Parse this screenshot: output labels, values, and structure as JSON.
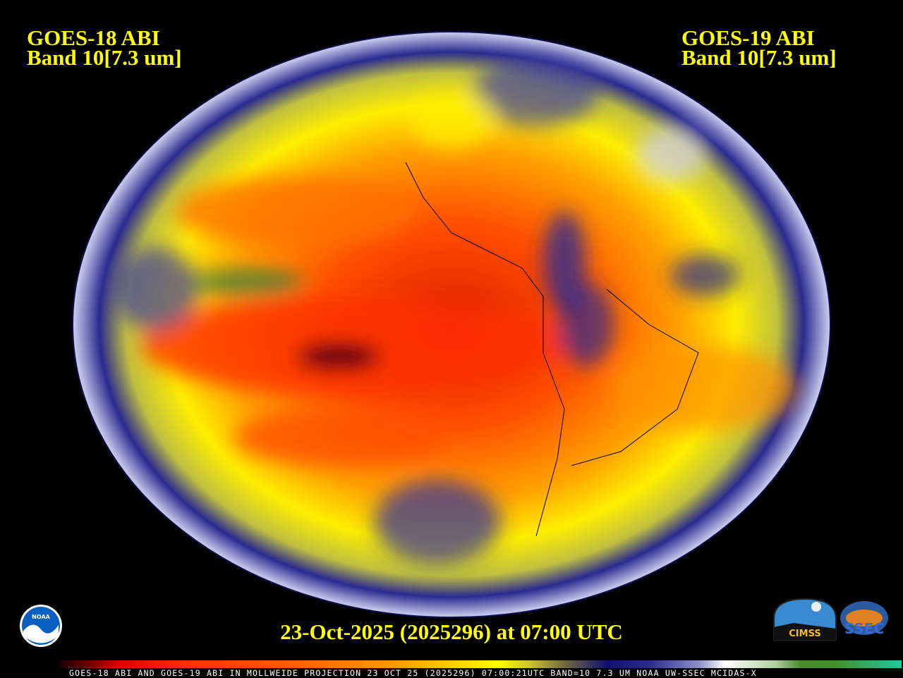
{
  "left_label": {
    "line1": "GOES-18 ABI",
    "line2": "Band 10[7.3 um]"
  },
  "right_label": {
    "line1": "GOES-19 ABI",
    "line2": "Band 10[7.3 um]"
  },
  "timestamp": "23-Oct-2025 (2025296) at 07:00 UTC",
  "caption": "GOES-18 ABI AND GOES-19 ABI IN MOLLWEIDE PROJECTION 23 OCT 25 (2025296) 07:00:21UTC BAND=10 7.3 UM NOAA UW-SSEC MCIDAS-X",
  "logos": {
    "noaa": "NOAA",
    "cimss": "CIMSS",
    "ssec": "SSEC"
  },
  "projection": "Mollweide",
  "colors": {
    "label": "#ffff00",
    "background": "#000000",
    "dry": "#ff3000",
    "moist": "#1a1a80",
    "clouds": "#ffffff"
  }
}
